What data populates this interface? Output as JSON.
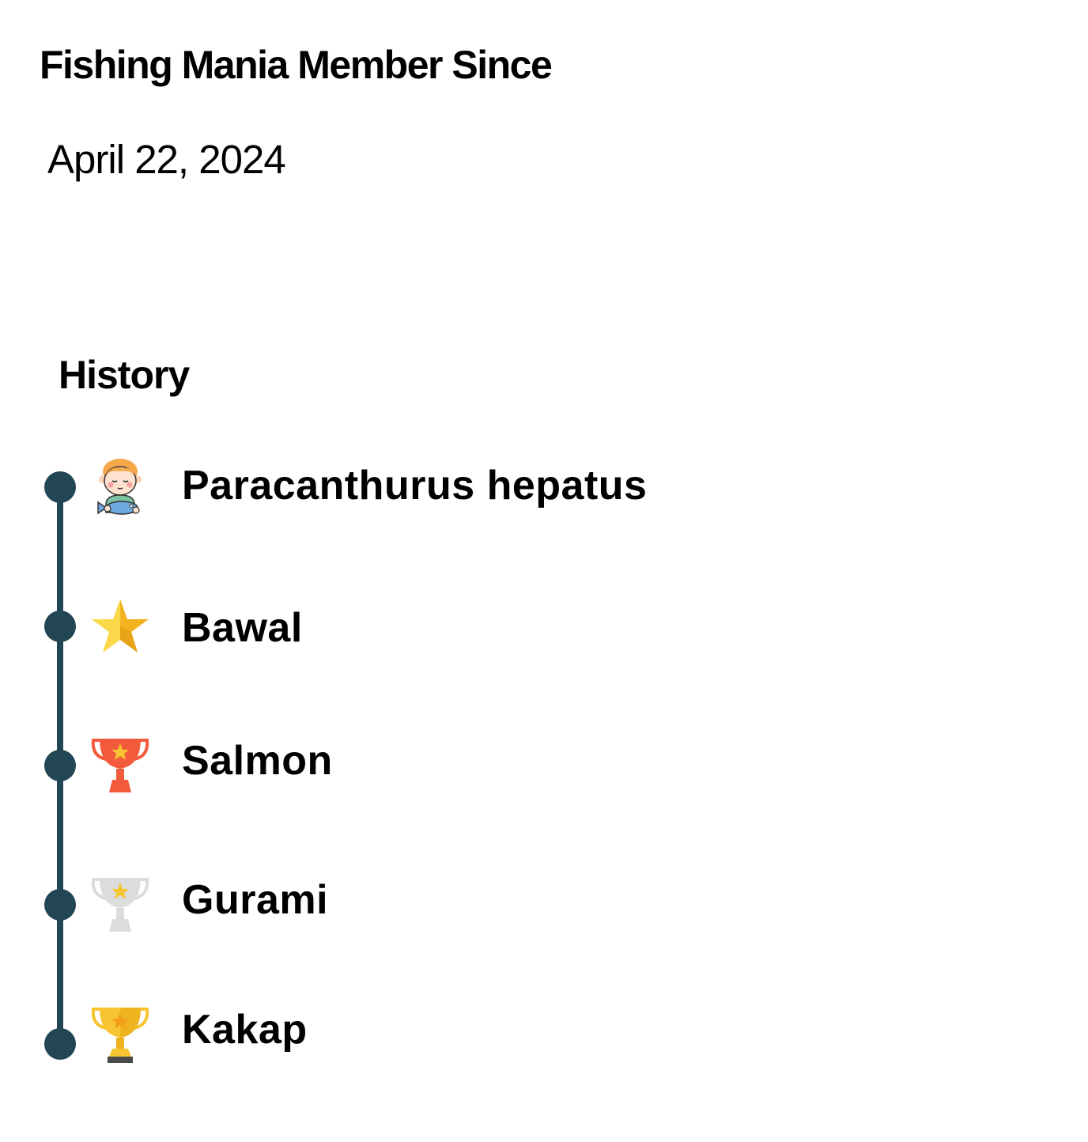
{
  "member": {
    "title": "Fishing Mania Member Since",
    "date": "April 22, 2024"
  },
  "history": {
    "title": "History",
    "accent_color": "#234654",
    "items": [
      {
        "label": "Paracanthurus hepatus",
        "icon": "child-holding-fish-icon"
      },
      {
        "label": "Bawal",
        "icon": "gold-star-icon"
      },
      {
        "label": "Salmon",
        "icon": "red-trophy-icon"
      },
      {
        "label": "Gurami",
        "icon": "silver-trophy-icon"
      },
      {
        "label": "Kakap",
        "icon": "gold-trophy-icon"
      }
    ]
  }
}
